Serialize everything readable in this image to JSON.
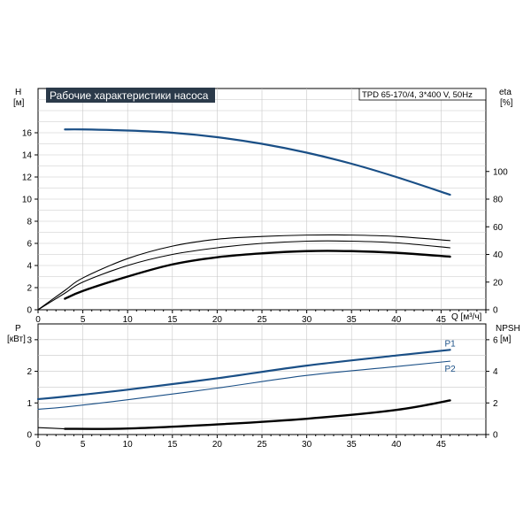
{
  "colors": {
    "curve_blue": "#1a4f86",
    "curve_black": "#000000",
    "title_bg": "#2b3a4a",
    "title_text": "#ffffff",
    "grid": "#c8c8c8"
  },
  "top": {
    "title": "Рабочие характеристики насоса",
    "model": "TPD 65-170/4, 3*400 V, 50Hz",
    "left_axis": {
      "symbol": "H",
      "unit": "[м]"
    },
    "right_axis": {
      "symbol": "eta",
      "unit": "[%]"
    },
    "x_axis_label": "Q [м³/ч]"
  },
  "bottom": {
    "left_axis": {
      "symbol": "P",
      "unit": "[кВт]"
    },
    "right_axis": {
      "symbol": "NPSH",
      "unit": "[м]"
    }
  },
  "chart_data": [
    {
      "type": "line",
      "panel": "top",
      "title": "Рабочие характеристики насоса",
      "xlabel": "Q [м³/ч]",
      "ylabel": "H [м]",
      "y2label": "eta [%]",
      "xlim": [
        0,
        50
      ],
      "ylim": [
        0,
        20
      ],
      "y2lim": [
        0,
        160
      ],
      "x_ticks": [
        0,
        5,
        10,
        15,
        20,
        25,
        30,
        35,
        40,
        45
      ],
      "y_ticks": [
        0,
        2,
        4,
        6,
        8,
        10,
        12,
        14,
        16
      ],
      "y2_ticks": [
        0,
        20,
        40,
        60,
        80,
        100
      ],
      "grid": true,
      "series": [
        {
          "axis": "left",
          "style": "blue-thick",
          "x": [
            3,
            5,
            10,
            15,
            20,
            25,
            30,
            35,
            40,
            46
          ],
          "y": [
            16.3,
            16.3,
            16.2,
            16.0,
            15.6,
            15.0,
            14.2,
            13.2,
            12.0,
            10.4
          ]
        },
        {
          "axis": "right",
          "style": "black-thin",
          "x": [
            0,
            3,
            5,
            10,
            15,
            20,
            25,
            30,
            35,
            40,
            46
          ],
          "y": [
            0,
            14,
            23,
            37,
            46,
            51,
            53,
            54,
            54,
            53,
            50
          ]
        },
        {
          "axis": "left",
          "style": "black-thin",
          "x": [
            0,
            3,
            5,
            10,
            15,
            20,
            25,
            30,
            35,
            40,
            46
          ],
          "y": [
            0,
            1.5,
            2.5,
            4.0,
            5.0,
            5.6,
            6.0,
            6.2,
            6.2,
            6.05,
            5.6
          ]
        },
        {
          "axis": "left",
          "style": "black-thick",
          "x": [
            3,
            5,
            10,
            15,
            20,
            25,
            30,
            35,
            40,
            46
          ],
          "y": [
            1.0,
            1.7,
            3.0,
            4.1,
            4.75,
            5.1,
            5.3,
            5.3,
            5.15,
            4.8
          ]
        }
      ]
    },
    {
      "type": "line",
      "panel": "bottom",
      "xlim": [
        0,
        50
      ],
      "ylim": [
        0,
        3.5
      ],
      "y2lim": [
        0,
        7
      ],
      "x_ticks": [
        0,
        5,
        10,
        15,
        20,
        25,
        30,
        35,
        40,
        45
      ],
      "y_ticks": [
        0,
        1,
        2,
        3
      ],
      "y2_ticks": [
        0,
        2,
        4,
        6
      ],
      "ylabel": "P [кВт]",
      "y2label": "NPSH [м]",
      "grid": true,
      "series": [
        {
          "name": "P1",
          "axis": "left",
          "style": "blue-thick",
          "x": [
            0,
            3,
            10,
            20,
            30,
            40,
            46
          ],
          "y": [
            1.12,
            1.2,
            1.42,
            1.78,
            2.18,
            2.5,
            2.68
          ]
        },
        {
          "name": "P2",
          "axis": "left",
          "style": "blue-thin",
          "x": [
            0,
            3,
            10,
            20,
            30,
            40,
            46
          ],
          "y": [
            0.8,
            0.87,
            1.1,
            1.47,
            1.87,
            2.15,
            2.32
          ]
        },
        {
          "axis": "right",
          "style": "black-thin",
          "x": [
            0,
            3
          ],
          "y": [
            0.44,
            0.36
          ]
        },
        {
          "axis": "right",
          "style": "black-thick",
          "x": [
            3,
            10,
            20,
            30,
            40,
            46
          ],
          "y": [
            0.36,
            0.38,
            0.64,
            1.0,
            1.56,
            2.16
          ]
        }
      ]
    }
  ]
}
